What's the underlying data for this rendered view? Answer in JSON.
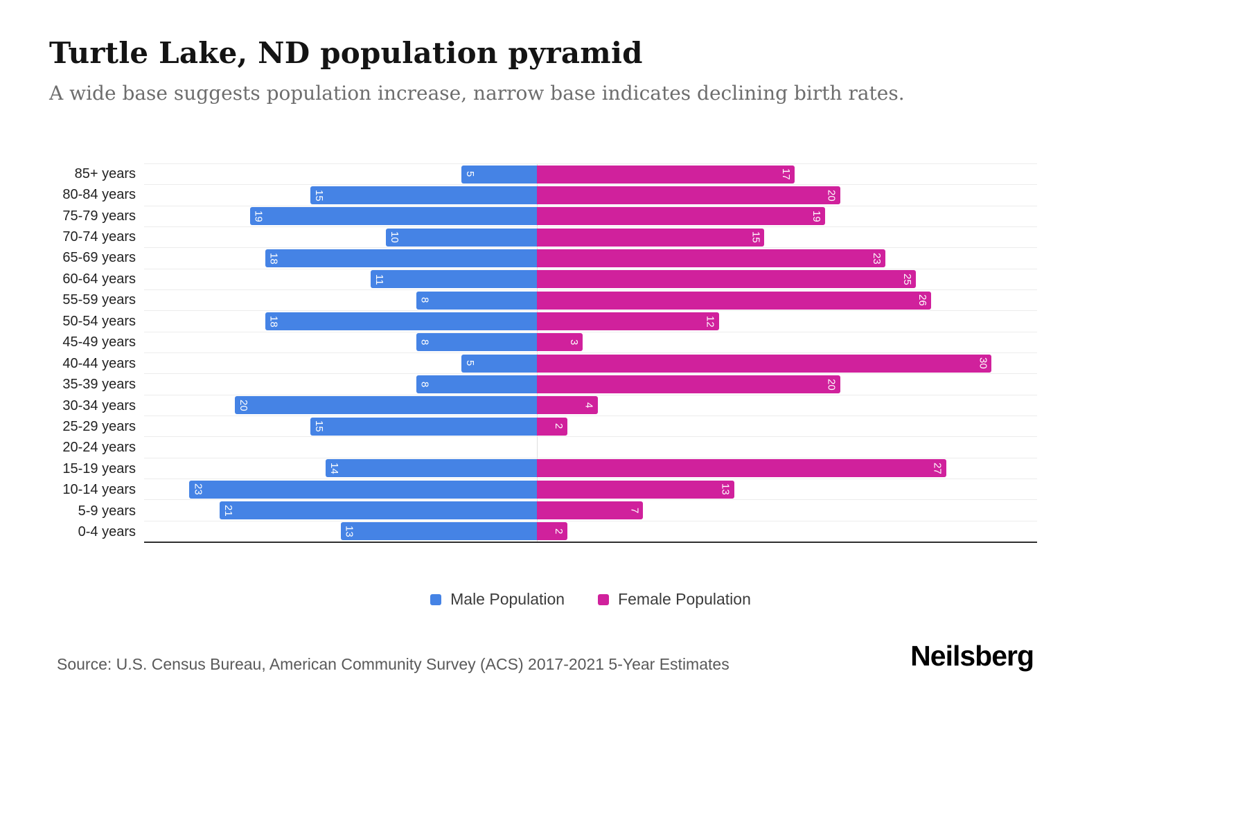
{
  "header": {
    "title": "Turtle Lake, ND population pyramid",
    "subtitle": "A wide base suggests population increase, narrow base indicates declining birth rates."
  },
  "chart_data": {
    "type": "bar",
    "variant": "population-pyramid",
    "orientation": "horizontal",
    "grid": true,
    "legend_position": "bottom",
    "categories": [
      "85+ years",
      "80-84 years",
      "75-79 years",
      "70-74 years",
      "65-69 years",
      "60-64 years",
      "55-59 years",
      "50-54 years",
      "45-49 years",
      "40-44 years",
      "35-39 years",
      "30-34 years",
      "25-29 years",
      "20-24 years",
      "15-19 years",
      "10-14 years",
      "5-9 years",
      "0-4 years"
    ],
    "series": [
      {
        "name": "Male Population",
        "side": "left",
        "color": "#4583e5",
        "values": [
          5,
          15,
          19,
          10,
          18,
          11,
          8,
          18,
          8,
          5,
          8,
          20,
          15,
          0,
          14,
          23,
          21,
          13
        ]
      },
      {
        "name": "Female Population",
        "side": "right",
        "color": "#d0219c",
        "values": [
          17,
          20,
          19,
          15,
          23,
          25,
          26,
          12,
          3,
          30,
          20,
          4,
          2,
          0,
          27,
          13,
          7,
          2
        ]
      }
    ],
    "male_axis_max": 26,
    "female_axis_max": 33
  },
  "footer": {
    "source": "Source: U.S. Census Bureau, American Community Survey (ACS) 2017-2021 5-Year Estimates",
    "brand": "Neilsberg"
  }
}
